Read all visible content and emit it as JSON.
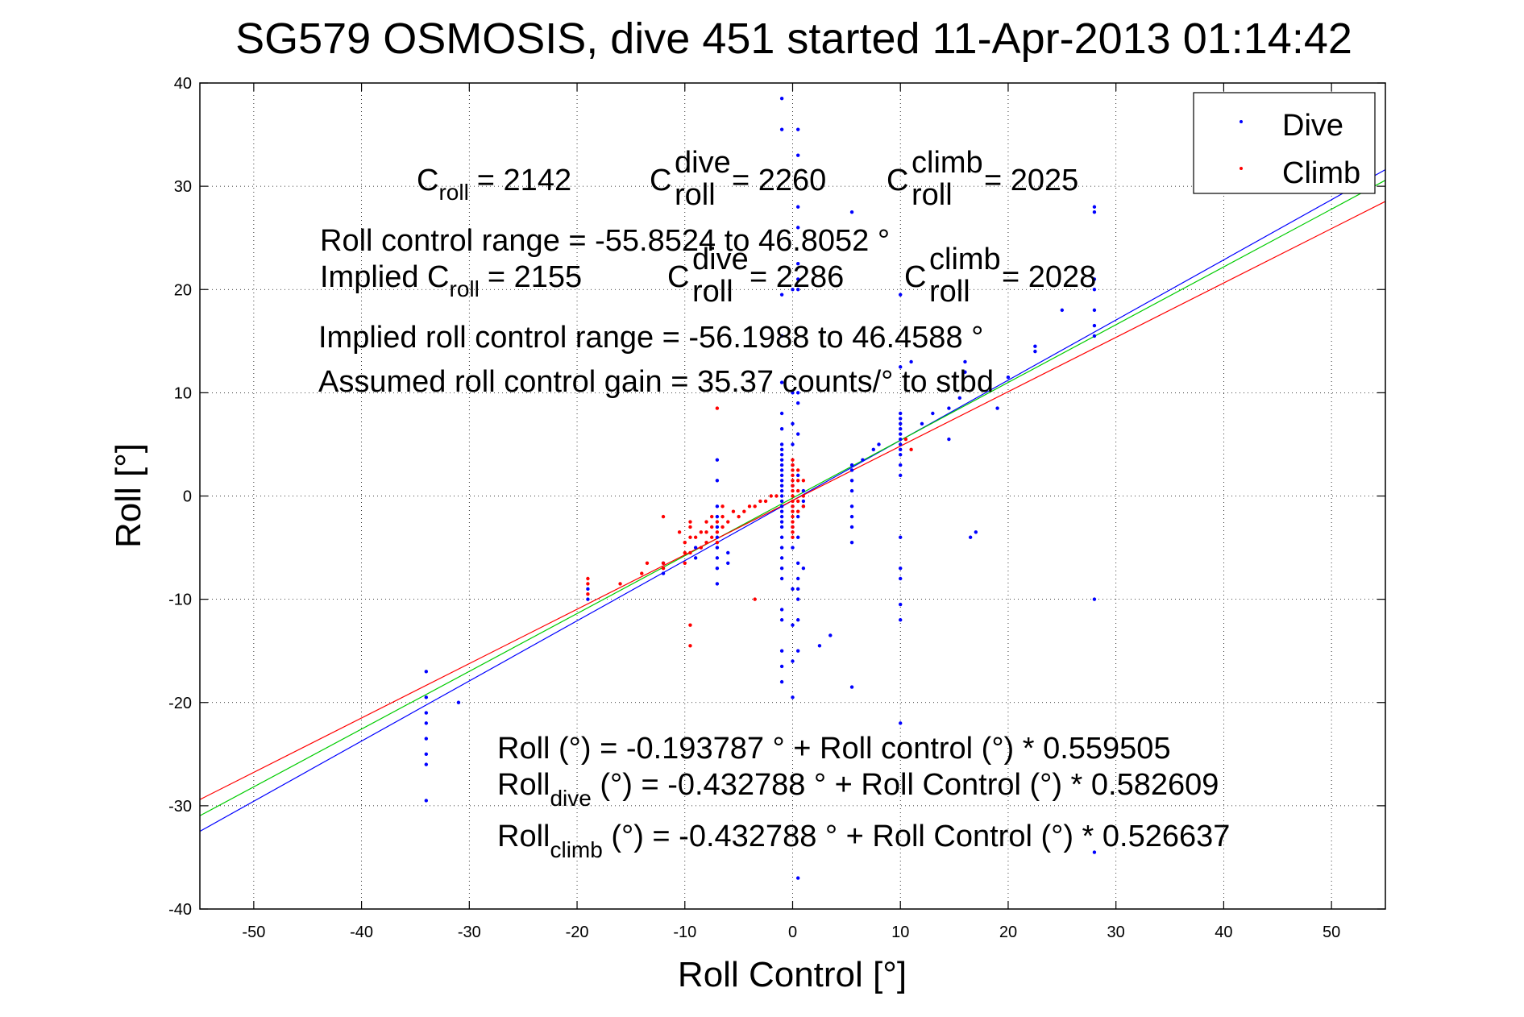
{
  "chart_data": {
    "type": "scatter",
    "title": "SG579 OSMOSIS, dive 451 started 11-Apr-2013 01:14:42",
    "xlabel": "Roll Control [°]",
    "ylabel": "Roll [°]",
    "xlim": [
      -55,
      55
    ],
    "ylim": [
      -40,
      40
    ],
    "xticks": [
      -50,
      -40,
      -30,
      -20,
      -10,
      0,
      10,
      20,
      30,
      40,
      50
    ],
    "yticks": [
      -40,
      -30,
      -20,
      -10,
      0,
      10,
      20,
      30,
      40
    ],
    "grid": true,
    "legend_position": "top-right",
    "legend": [
      {
        "label": "Dive",
        "color": "#0000ff"
      },
      {
        "label": "Climb",
        "color": "#ff0000"
      }
    ],
    "series": [
      {
        "name": "Dive",
        "color": "#0000ff",
        "points": [
          [
            -34,
            -17
          ],
          [
            -34,
            -19.5
          ],
          [
            -34,
            -21
          ],
          [
            -34,
            -22
          ],
          [
            -34,
            -23.5
          ],
          [
            -34,
            -25
          ],
          [
            -34,
            -26
          ],
          [
            -34,
            -29.5
          ],
          [
            -31,
            -20
          ],
          [
            -19,
            -9
          ],
          [
            -19,
            -10
          ],
          [
            -12,
            -6.5
          ],
          [
            -12,
            -7.5
          ],
          [
            -9,
            -5
          ],
          [
            -9,
            -6
          ],
          [
            -7,
            3.5
          ],
          [
            -7,
            1.5
          ],
          [
            -7,
            -1
          ],
          [
            -7,
            -2
          ],
          [
            -7,
            -3
          ],
          [
            -7,
            -4
          ],
          [
            -7,
            -5
          ],
          [
            -7,
            -6
          ],
          [
            -7,
            -7
          ],
          [
            -7,
            -8.5
          ],
          [
            -6,
            -5.5
          ],
          [
            -6,
            -6.5
          ],
          [
            -1,
            38.5
          ],
          [
            -1,
            35.5
          ],
          [
            -1,
            19.5
          ],
          [
            -1,
            15.5
          ],
          [
            -1,
            11
          ],
          [
            -1,
            8
          ],
          [
            -1,
            6.5
          ],
          [
            -1,
            5
          ],
          [
            -1,
            4.5
          ],
          [
            -1,
            4
          ],
          [
            -1,
            3.5
          ],
          [
            -1,
            3
          ],
          [
            -1,
            2.5
          ],
          [
            -1,
            2
          ],
          [
            -1,
            1.5
          ],
          [
            -1,
            1
          ],
          [
            -1,
            0.5
          ],
          [
            -1,
            0
          ],
          [
            -1,
            -0.5
          ],
          [
            -1,
            -1
          ],
          [
            -1,
            -1.5
          ],
          [
            -1,
            -2
          ],
          [
            -1,
            -2.5
          ],
          [
            -1,
            -3
          ],
          [
            -1,
            -4
          ],
          [
            -1,
            -5
          ],
          [
            -1,
            -6
          ],
          [
            -1,
            -7
          ],
          [
            -1,
            -8
          ],
          [
            -1,
            -11
          ],
          [
            -1,
            -12
          ],
          [
            -1,
            -15
          ],
          [
            -1,
            -16.5
          ],
          [
            -1,
            -18
          ],
          [
            0,
            20
          ],
          [
            0,
            10
          ],
          [
            0,
            7
          ],
          [
            0,
            5
          ],
          [
            0,
            3
          ],
          [
            0,
            1
          ],
          [
            0,
            -1
          ],
          [
            0,
            -3
          ],
          [
            0,
            -5
          ],
          [
            0,
            -9
          ],
          [
            0,
            -12.5
          ],
          [
            0,
            -16
          ],
          [
            0,
            -19.5
          ],
          [
            0.5,
            35.5
          ],
          [
            0.5,
            33
          ],
          [
            0.5,
            28
          ],
          [
            0.5,
            26
          ],
          [
            0.5,
            22.5
          ],
          [
            0.5,
            21
          ],
          [
            0.5,
            20
          ],
          [
            0.5,
            10
          ],
          [
            0.5,
            9
          ],
          [
            0.5,
            6
          ],
          [
            0.5,
            2
          ],
          [
            0.5,
            -2
          ],
          [
            0.5,
            -4
          ],
          [
            0.5,
            -6.5
          ],
          [
            0.5,
            -8
          ],
          [
            0.5,
            -9
          ],
          [
            0.5,
            -10
          ],
          [
            0.5,
            -12
          ],
          [
            0.5,
            -15
          ],
          [
            0.5,
            -37
          ],
          [
            1,
            0.5
          ],
          [
            1,
            -0.5
          ],
          [
            1,
            -1
          ],
          [
            1,
            -7
          ],
          [
            2.5,
            -14.5
          ],
          [
            3.5,
            -13.5
          ],
          [
            5.5,
            27.5
          ],
          [
            5.5,
            3
          ],
          [
            5.5,
            2.5
          ],
          [
            5.5,
            1.5
          ],
          [
            5.5,
            0.5
          ],
          [
            5.5,
            -1
          ],
          [
            5.5,
            -2
          ],
          [
            5.5,
            -3
          ],
          [
            5.5,
            -4.5
          ],
          [
            5.5,
            -18.5
          ],
          [
            6.5,
            3.5
          ],
          [
            7.5,
            4.5
          ],
          [
            8,
            5
          ],
          [
            10,
            19.5
          ],
          [
            10,
            12.5
          ],
          [
            10,
            8
          ],
          [
            10,
            7.5
          ],
          [
            10,
            7
          ],
          [
            10,
            6.5
          ],
          [
            10,
            6
          ],
          [
            10,
            5.5
          ],
          [
            10,
            5
          ],
          [
            10,
            4.5
          ],
          [
            10,
            4
          ],
          [
            10,
            3
          ],
          [
            10,
            2
          ],
          [
            10,
            -4
          ],
          [
            10,
            -7
          ],
          [
            10,
            -8
          ],
          [
            10,
            -10.5
          ],
          [
            10,
            -12
          ],
          [
            10,
            -22
          ],
          [
            11,
            13
          ],
          [
            12,
            7
          ],
          [
            13,
            8
          ],
          [
            14.5,
            8.5
          ],
          [
            14.5,
            5.5
          ],
          [
            15.5,
            9.5
          ],
          [
            16,
            12
          ],
          [
            16,
            13
          ],
          [
            16.5,
            -4
          ],
          [
            17,
            -3.5
          ],
          [
            19,
            8.5
          ],
          [
            20,
            11.5
          ],
          [
            22.5,
            14
          ],
          [
            22.5,
            14.5
          ],
          [
            25,
            18
          ],
          [
            28,
            28
          ],
          [
            28,
            27.5
          ],
          [
            28,
            21
          ],
          [
            28,
            20
          ],
          [
            28,
            18
          ],
          [
            28,
            16.5
          ],
          [
            28,
            15.5
          ],
          [
            28,
            -10
          ],
          [
            28,
            -34.5
          ]
        ]
      },
      {
        "name": "Climb",
        "color": "#ff0000",
        "points": [
          [
            -19,
            -8
          ],
          [
            -19,
            -8.5
          ],
          [
            -19,
            -9.5
          ],
          [
            -16,
            -8.5
          ],
          [
            -14,
            -7.5
          ],
          [
            -13.5,
            -6.5
          ],
          [
            -12,
            -2
          ],
          [
            -12,
            -6.5
          ],
          [
            -12,
            -7
          ],
          [
            -10.5,
            -3.5
          ],
          [
            -10,
            -4.5
          ],
          [
            -10,
            -5.5
          ],
          [
            -10,
            -6.5
          ],
          [
            -9.5,
            -2.5
          ],
          [
            -9.5,
            -3
          ],
          [
            -9.5,
            -4
          ],
          [
            -9.5,
            -5.5
          ],
          [
            -9.5,
            -12.5
          ],
          [
            -9.5,
            -14.5
          ],
          [
            -9,
            -4
          ],
          [
            -8.5,
            -3.5
          ],
          [
            -8.5,
            -5
          ],
          [
            -8,
            -2.5
          ],
          [
            -8,
            -3.5
          ],
          [
            -8,
            -4.5
          ],
          [
            -7.5,
            -2
          ],
          [
            -7.5,
            -3
          ],
          [
            -7.5,
            -4
          ],
          [
            -7,
            8.5
          ],
          [
            -7,
            -2.5
          ],
          [
            -7,
            -3.5
          ],
          [
            -7,
            -4.5
          ],
          [
            -6.5,
            -1
          ],
          [
            -6.5,
            -2
          ],
          [
            -6.5,
            -3
          ],
          [
            -6,
            -2.5
          ],
          [
            -5.5,
            -1.5
          ],
          [
            -5,
            -2
          ],
          [
            -4.5,
            -1.5
          ],
          [
            -4,
            -1
          ],
          [
            -3.5,
            -1
          ],
          [
            -3.5,
            -10
          ],
          [
            -3,
            -0.5
          ],
          [
            -2.5,
            -0.5
          ],
          [
            -2,
            0
          ],
          [
            -1.5,
            0
          ],
          [
            0,
            3.5
          ],
          [
            0,
            3
          ],
          [
            0,
            2.5
          ],
          [
            0,
            2
          ],
          [
            0,
            1.5
          ],
          [
            0,
            1
          ],
          [
            0,
            0.5
          ],
          [
            0,
            0
          ],
          [
            0,
            -0.5
          ],
          [
            0,
            -1
          ],
          [
            0,
            -1.5
          ],
          [
            0,
            -2
          ],
          [
            0,
            -2.5
          ],
          [
            0,
            -3
          ],
          [
            0,
            -3.5
          ],
          [
            0,
            -4
          ],
          [
            0.5,
            2.5
          ],
          [
            0.5,
            1.5
          ],
          [
            0.5,
            0.5
          ],
          [
            0.5,
            -0.5
          ],
          [
            0.5,
            -1.5
          ],
          [
            1,
            1.5
          ],
          [
            1,
            0
          ],
          [
            1,
            -1
          ],
          [
            10.5,
            5.5
          ],
          [
            11,
            4.5
          ]
        ]
      }
    ],
    "fit_lines": [
      {
        "name": "Dive fit",
        "color": "#0000ff",
        "intercept": -0.432788,
        "slope": 0.582609
      },
      {
        "name": "All fit",
        "color": "#00cc00",
        "intercept": -0.193787,
        "slope": 0.559505
      },
      {
        "name": "Climb fit",
        "color": "#ff0000",
        "intercept": -0.432788,
        "slope": 0.526637
      }
    ],
    "annotations": {
      "c_roll": {
        "base": "C",
        "sub": "roll",
        "value": "= 2142"
      },
      "c_roll_dive": {
        "base": "C",
        "sup": "dive",
        "sub": "roll",
        "value": "= 2260"
      },
      "c_roll_climb": {
        "base": "C",
        "sup": "climb",
        "sub": "roll",
        "value": "= 2025"
      },
      "roll_control_range": "Roll control range = -55.8524 to 46.8052 °",
      "implied_prefix": "Implied C",
      "implied_sub": "roll",
      "implied_value": "= 2155",
      "implied_dive": {
        "base": "C",
        "sup": "dive",
        "sub": "roll",
        "value": "= 2286"
      },
      "implied_climb": {
        "base": "C",
        "sup": "climb",
        "sub": "roll",
        "value": "= 2028"
      },
      "implied_range": "Implied roll control range = -56.1988 to 46.4588 °",
      "gain": "Assumed roll control gain = 35.37 counts/° to stbd",
      "eq_all": "Roll (°) = -0.193787 ° + Roll control (°) * 0.559505",
      "eq_dive_base": "Roll",
      "eq_dive_sub": "dive",
      "eq_dive_rest": " (°) = -0.432788 ° + Roll Control (°) * 0.582609",
      "eq_climb_base": "Roll",
      "eq_climb_sub": "climb",
      "eq_climb_rest": " (°) = -0.432788 ° + Roll Control (°) * 0.526637"
    }
  }
}
